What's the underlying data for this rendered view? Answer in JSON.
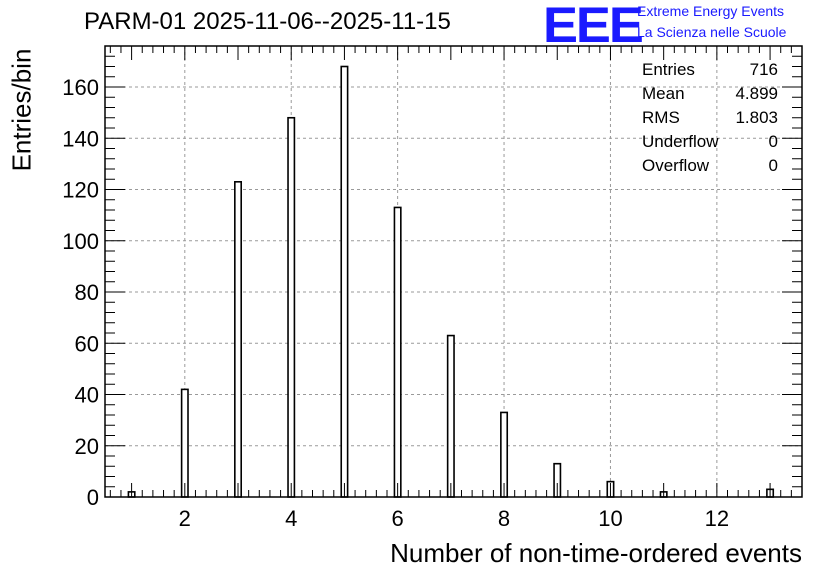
{
  "title": "PARM-01 2025-11-06--2025-11-15",
  "logo": {
    "mark": "EEE",
    "line1": "Extreme Energy Events",
    "line2": "La Scienza nelle Scuole",
    "color": "#1a1aff"
  },
  "stats": [
    {
      "label": "Entries",
      "value": "716"
    },
    {
      "label": "Mean",
      "value": "4.899"
    },
    {
      "label": "RMS",
      "value": "1.803"
    },
    {
      "label": "Underflow",
      "value": "0"
    },
    {
      "label": "Overflow",
      "value": "0"
    }
  ],
  "chart_data": {
    "type": "bar",
    "title": "PARM-01 2025-11-06--2025-11-15",
    "xlabel": "Number of non-time-ordered events",
    "ylabel": "Entries/bin",
    "xlim": [
      0.5,
      13.6
    ],
    "ylim": [
      0,
      176
    ],
    "x_ticks": [
      2,
      4,
      6,
      8,
      10,
      12
    ],
    "y_ticks": [
      0,
      20,
      40,
      60,
      80,
      100,
      120,
      140,
      160
    ],
    "grid": true,
    "bar_width": 0.12,
    "x": [
      1,
      2,
      3,
      4,
      5,
      6,
      7,
      8,
      9,
      10,
      11,
      13
    ],
    "values": [
      2,
      42,
      123,
      148,
      168,
      113,
      63,
      33,
      13,
      6,
      2,
      3
    ]
  }
}
